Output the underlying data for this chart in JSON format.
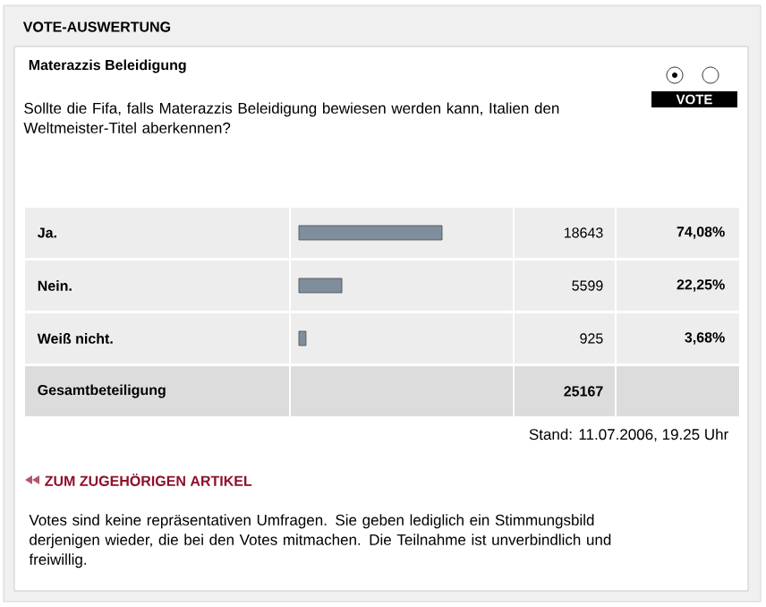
{
  "chart_data": {
    "type": "bar",
    "orientation": "horizontal",
    "title": "Materazzis Beleidigung",
    "subtitle": "Sollte die Fifa, falls Materazzis Beleidigung bewiesen werden kann, Italien den Weltmeister-Titel aberkennen?",
    "categories": [
      "Ja.",
      "Nein.",
      "Weiß nicht."
    ],
    "values": [
      18643,
      5599,
      925
    ],
    "color": "#7f8e9c",
    "data_labels": true,
    "annotations": [
      "VOTE-AUSWERTUNG",
      "VOTE",
      "Gesamtbeteiligung",
      "25167",
      "Stand: 11.07.2006, 19.25 Uhr",
      "ZUM ZUGEHÖRIGEN ARTIKEL",
      "Votes sind keine repräsentativen Umfragen. Sie geben lediglich ein Stimmungsbild derjenigen wieder, die bei den Votes mitmachen. Die Teilnahme ist unverbindlich und freiwillig.",
      "74,08%",
      "22,25%",
      "3,68%"
    ]
  }
}
